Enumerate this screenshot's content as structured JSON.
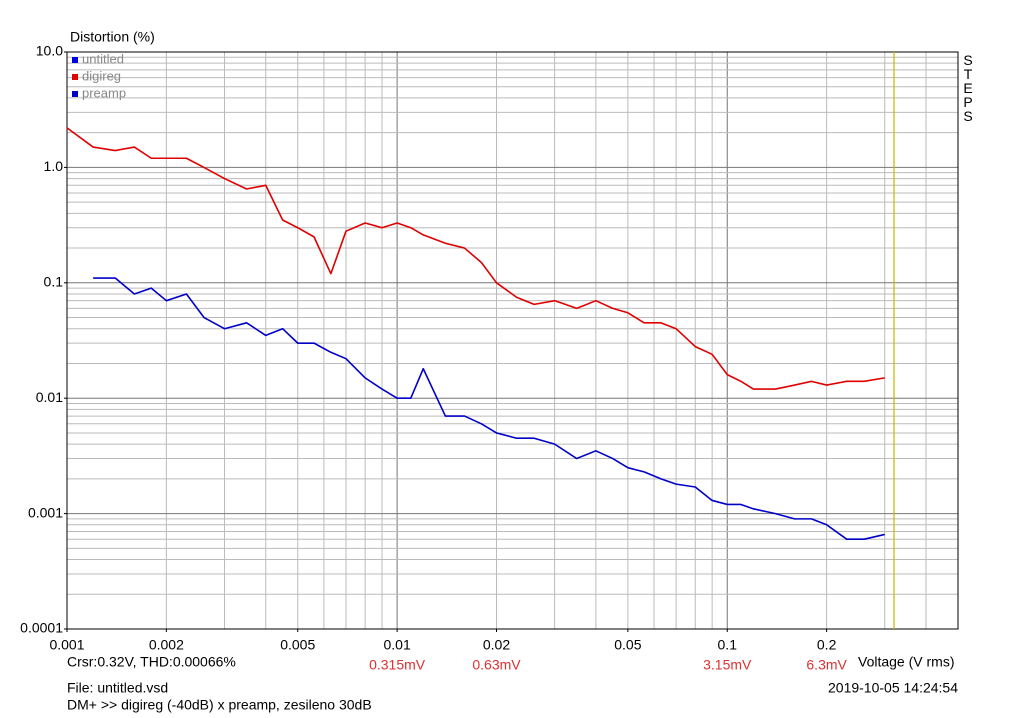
{
  "chart_data": {
    "type": "line",
    "title": "Distortion (%)",
    "x_label": "Voltage (V rms)",
    "side_label": "STEPS",
    "cursor": {
      "x": 0.32,
      "color": "#c8b400",
      "text": "Crsr:0.32V, THD:0.00066%"
    },
    "file": "File: untitled.vsd",
    "description": "DM+ >> digireg (-40dB) x preamp, zesileno 30dB",
    "timestamp": "2019-10-05  14:24:54",
    "xscale": "log",
    "yscale": "log",
    "grid": true,
    "xlim": [
      0.001,
      0.5
    ],
    "ylim": [
      0.0001,
      10
    ],
    "xticks": [
      0.001,
      0.002,
      0.005,
      0.01,
      0.02,
      0.05,
      0.1,
      0.2
    ],
    "yticks": [
      {
        "value": 10,
        "label": "10.0"
      },
      {
        "value": 1,
        "label": "1.0"
      },
      0.1,
      0.01,
      0.001,
      0.0001
    ],
    "xgrid": [
      0.001,
      0.002,
      0.003,
      0.004,
      0.005,
      0.006,
      0.007,
      0.008,
      0.009,
      0.01,
      0.02,
      0.03,
      0.04,
      0.05,
      0.06,
      0.07,
      0.08,
      0.09,
      0.1,
      0.2,
      0.3,
      0.4
    ],
    "ygrid": [
      0.0001,
      0.0002,
      0.0003,
      0.0004,
      0.0005,
      0.0006,
      0.0007,
      0.0008,
      0.0009,
      0.001,
      0.002,
      0.003,
      0.004,
      0.005,
      0.006,
      0.007,
      0.008,
      0.009,
      0.01,
      0.02,
      0.03,
      0.04,
      0.05,
      0.06,
      0.07,
      0.08,
      0.09,
      0.1,
      0.2,
      0.3,
      0.4,
      0.5,
      0.6,
      0.7,
      0.8,
      0.9,
      1,
      2,
      3,
      4,
      5,
      6,
      7,
      8,
      9,
      10
    ],
    "x2labels": {
      "color": "#e03030",
      "ticks": [
        {
          "value": 0.01,
          "label": "0.315mV"
        },
        {
          "value": 0.02,
          "label": "0.63mV"
        },
        {
          "value": 0.1,
          "label": "3.15mV"
        },
        {
          "value": 0.2,
          "label": "6.3mV"
        }
      ]
    },
    "x": [
      0.001,
      0.0012,
      0.0014,
      0.0016,
      0.0018,
      0.002,
      0.0023,
      0.0026,
      0.003,
      0.0035,
      0.004,
      0.0045,
      0.005,
      0.0056,
      0.0063,
      0.007,
      0.008,
      0.009,
      0.01,
      0.011,
      0.012,
      0.014,
      0.016,
      0.018,
      0.02,
      0.023,
      0.026,
      0.03,
      0.035,
      0.04,
      0.045,
      0.05,
      0.056,
      0.063,
      0.07,
      0.08,
      0.09,
      0.1,
      0.11,
      0.12,
      0.14,
      0.16,
      0.18,
      0.2,
      0.23,
      0.26,
      0.3
    ],
    "series": [
      {
        "name": "untitled",
        "color": "#0000e0",
        "values": [
          null,
          null,
          null,
          null,
          null,
          null,
          null,
          null,
          null,
          null,
          null,
          null,
          null,
          null,
          null,
          null,
          null,
          null,
          null,
          null,
          null,
          null,
          null,
          null,
          null,
          null,
          null,
          null,
          null,
          null,
          null,
          null,
          null,
          null,
          null,
          null,
          null,
          null,
          null,
          null,
          null,
          null,
          null,
          null,
          null,
          null,
          null
        ]
      },
      {
        "name": "digireg",
        "color": "#e00000",
        "values": [
          2.2,
          1.5,
          1.4,
          1.5,
          1.2,
          1.2,
          1.2,
          1.0,
          0.8,
          0.65,
          0.7,
          0.35,
          0.3,
          0.25,
          0.12,
          0.28,
          0.33,
          0.3,
          0.33,
          0.3,
          0.26,
          0.22,
          0.2,
          0.15,
          0.1,
          0.075,
          0.065,
          0.07,
          0.06,
          0.07,
          0.06,
          0.055,
          0.045,
          0.045,
          0.04,
          0.028,
          0.024,
          0.016,
          0.014,
          0.012,
          0.012,
          0.013,
          0.014,
          0.013,
          0.014,
          0.014,
          0.015
        ]
      },
      {
        "name": "preamp",
        "color": "#0000c8",
        "values": [
          null,
          0.11,
          0.11,
          0.08,
          0.09,
          0.07,
          0.08,
          0.05,
          0.04,
          0.045,
          0.035,
          0.04,
          0.03,
          0.03,
          0.025,
          0.022,
          0.015,
          0.012,
          0.01,
          0.01,
          0.018,
          0.007,
          0.007,
          0.006,
          0.005,
          0.0045,
          0.0045,
          0.004,
          0.003,
          0.0035,
          0.003,
          0.0025,
          0.0023,
          0.002,
          0.0018,
          0.0017,
          0.0013,
          0.0012,
          0.0012,
          0.0011,
          0.001,
          0.0009,
          0.0009,
          0.0008,
          0.0006,
          0.0006,
          0.00066
        ]
      }
    ]
  }
}
